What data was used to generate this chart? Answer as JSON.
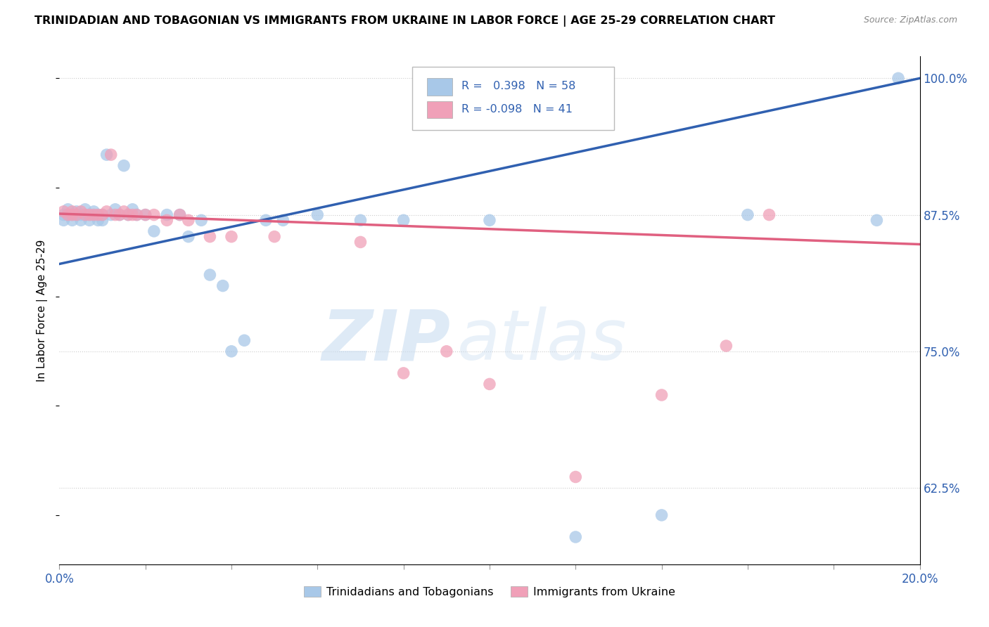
{
  "title": "TRINIDADIAN AND TOBAGONIAN VS IMMIGRANTS FROM UKRAINE IN LABOR FORCE | AGE 25-29 CORRELATION CHART",
  "source": "Source: ZipAtlas.com",
  "ylabel": "In Labor Force | Age 25-29",
  "legend_label_blue": "Trinidadians and Tobagonians",
  "legend_label_pink": "Immigrants from Ukraine",
  "blue_color": "#A8C8E8",
  "pink_color": "#F0A0B8",
  "blue_line_color": "#3060B0",
  "pink_line_color": "#E06080",
  "xlim": [
    0.0,
    0.2
  ],
  "ylim": [
    0.555,
    1.02
  ],
  "figsize": [
    14.06,
    8.92
  ],
  "dpi": 100,
  "blue_scatter_x": [
    0.001,
    0.001,
    0.002,
    0.002,
    0.003,
    0.003,
    0.004,
    0.004,
    0.005,
    0.005,
    0.006,
    0.006,
    0.007,
    0.007,
    0.008,
    0.008,
    0.009,
    0.009,
    0.01,
    0.01,
    0.011,
    0.012,
    0.013,
    0.014,
    0.015,
    0.016,
    0.017,
    0.018,
    0.02,
    0.022,
    0.025,
    0.028,
    0.03,
    0.033,
    0.035,
    0.038,
    0.04,
    0.043,
    0.048,
    0.052,
    0.06,
    0.07,
    0.08,
    0.1,
    0.12,
    0.14,
    0.16,
    0.19,
    0.195
  ],
  "blue_scatter_y": [
    0.875,
    0.87,
    0.88,
    0.875,
    0.87,
    0.875,
    0.875,
    0.878,
    0.875,
    0.87,
    0.875,
    0.88,
    0.875,
    0.87,
    0.875,
    0.878,
    0.875,
    0.87,
    0.875,
    0.87,
    0.93,
    0.875,
    0.88,
    0.875,
    0.92,
    0.875,
    0.88,
    0.875,
    0.875,
    0.86,
    0.875,
    0.875,
    0.855,
    0.87,
    0.82,
    0.81,
    0.75,
    0.76,
    0.87,
    0.87,
    0.875,
    0.87,
    0.87,
    0.87,
    0.58,
    0.6,
    0.875,
    0.87,
    1.0
  ],
  "pink_scatter_x": [
    0.001,
    0.002,
    0.003,
    0.003,
    0.004,
    0.005,
    0.006,
    0.007,
    0.008,
    0.009,
    0.01,
    0.011,
    0.012,
    0.013,
    0.014,
    0.015,
    0.016,
    0.017,
    0.018,
    0.02,
    0.022,
    0.025,
    0.028,
    0.03,
    0.035,
    0.04,
    0.05,
    0.07,
    0.08,
    0.09,
    0.1,
    0.12,
    0.14,
    0.155,
    0.165
  ],
  "pink_scatter_y": [
    0.878,
    0.875,
    0.878,
    0.875,
    0.875,
    0.878,
    0.875,
    0.875,
    0.875,
    0.875,
    0.875,
    0.878,
    0.93,
    0.875,
    0.875,
    0.878,
    0.875,
    0.875,
    0.875,
    0.875,
    0.875,
    0.87,
    0.875,
    0.87,
    0.855,
    0.855,
    0.855,
    0.85,
    0.73,
    0.75,
    0.72,
    0.635,
    0.71,
    0.755,
    0.875
  ],
  "blue_line_x0": 0.0,
  "blue_line_y0": 0.83,
  "blue_line_x1": 0.2,
  "blue_line_y1": 1.0,
  "pink_line_x0": 0.0,
  "pink_line_y0": 0.876,
  "pink_line_x1": 0.2,
  "pink_line_y1": 0.848
}
